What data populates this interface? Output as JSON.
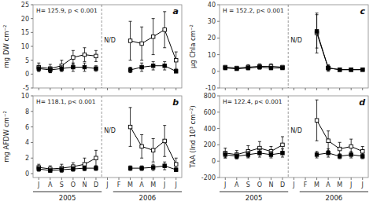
{
  "chart_data": [
    {
      "type": "line",
      "title": "a",
      "subtitle": "H= 125.9, p < 0.001",
      "ylabel": "mg DW cm⁻²",
      "categories": [
        "J",
        "A",
        "S",
        "O",
        "N",
        "D",
        "J",
        "F",
        "M",
        "A",
        "M",
        "J",
        "J"
      ],
      "series": [
        {
          "marker": "square-open",
          "color": "#000000",
          "values": [
            2.5,
            2.0,
            3.0,
            6.0,
            7.0,
            6.5,
            null,
            null,
            12.0,
            11.0,
            13.5,
            16.0,
            5.0
          ],
          "errors": [
            1.5,
            1.5,
            2.0,
            2.5,
            2.5,
            2.0,
            null,
            null,
            7.0,
            6.0,
            6.5,
            6.5,
            3.0
          ]
        },
        {
          "marker": "square",
          "color": "#000000",
          "values": [
            2.0,
            1.5,
            2.0,
            2.5,
            2.5,
            2.0,
            null,
            null,
            1.5,
            2.5,
            3.0,
            3.0,
            1.0
          ],
          "errors": [
            1.0,
            1.0,
            1.0,
            1.5,
            1.5,
            1.0,
            null,
            null,
            1.0,
            1.5,
            1.5,
            1.5,
            0.5
          ]
        }
      ],
      "ylim": [
        -5,
        25
      ],
      "yticks": [
        -5,
        0,
        5,
        10,
        15,
        20,
        25
      ],
      "tick_labels": "y",
      "annotations": [
        "N/D"
      ]
    },
    {
      "type": "line",
      "title": "c",
      "subtitle": "H = 152.2, p< 0.001",
      "ylabel": "μg Chla cm⁻²",
      "categories": [
        "J",
        "A",
        "S",
        "O",
        "N",
        "D",
        "J",
        "F",
        "M",
        "A",
        "M",
        "J",
        "J"
      ],
      "series": [
        {
          "marker": "square-open",
          "color": "#000000",
          "values": [
            2.5,
            2.0,
            2.5,
            3.0,
            3.0,
            2.5,
            null,
            null,
            23.0,
            2.0,
            1.0,
            1.0,
            1.0
          ],
          "errors": [
            1.0,
            1.0,
            1.5,
            1.5,
            1.5,
            1.0,
            null,
            null,
            12.0,
            2.0,
            1.0,
            1.0,
            0.5
          ]
        },
        {
          "marker": "square",
          "color": "#000000",
          "values": [
            2.0,
            1.5,
            2.0,
            2.5,
            2.0,
            2.0,
            null,
            null,
            24.0,
            2.0,
            1.0,
            1.0,
            1.0
          ],
          "errors": [
            1.0,
            0.8,
            1.0,
            1.2,
            1.0,
            0.8,
            null,
            null,
            10.0,
            1.5,
            0.8,
            0.8,
            0.5
          ]
        }
      ],
      "ylim": [
        -10,
        40
      ],
      "yticks": [
        -10,
        0,
        10,
        20,
        30,
        40
      ],
      "tick_labels": "y",
      "annotations": [
        "N/D"
      ]
    },
    {
      "type": "line",
      "title": "b",
      "subtitle": "H= 118.1, p< 0.001",
      "ylabel": "mg AFDW cm⁻²",
      "categories": [
        "J",
        "A",
        "S",
        "O",
        "N",
        "D",
        "J",
        "F",
        "M",
        "A",
        "M",
        "J",
        "J"
      ],
      "series": [
        {
          "marker": "square-open",
          "color": "#000000",
          "values": [
            0.8,
            0.6,
            0.7,
            0.9,
            1.2,
            2.0,
            null,
            null,
            6.0,
            3.5,
            3.0,
            4.2,
            1.2
          ],
          "errors": [
            0.4,
            0.4,
            0.5,
            0.5,
            0.8,
            1.0,
            null,
            null,
            2.5,
            1.5,
            1.5,
            2.0,
            0.8
          ]
        },
        {
          "marker": "square",
          "color": "#000000",
          "values": [
            0.6,
            0.4,
            0.5,
            0.6,
            0.7,
            0.7,
            null,
            null,
            0.7,
            0.7,
            0.8,
            1.0,
            0.5
          ],
          "errors": [
            0.3,
            0.2,
            0.3,
            0.3,
            0.3,
            0.3,
            null,
            null,
            0.3,
            0.3,
            0.4,
            0.5,
            0.2
          ]
        }
      ],
      "ylim": [
        -0.5,
        10
      ],
      "yticks": [
        0,
        2,
        4,
        6,
        8,
        10
      ],
      "annotations": [
        "N/D",
        "2005",
        "2006"
      ]
    },
    {
      "type": "line",
      "title": "d",
      "subtitle": "H= 122.4, p< 0.001",
      "ylabel": "TAA (Ind 10³ cm⁻²)",
      "categories": [
        "J",
        "A",
        "S",
        "O",
        "N",
        "D",
        "J",
        "F",
        "M",
        "A",
        "M",
        "J",
        "J"
      ],
      "series": [
        {
          "marker": "square-open",
          "color": "#000000",
          "values": [
            100,
            80,
            120,
            160,
            120,
            200,
            null,
            null,
            500,
            250,
            150,
            180,
            120
          ],
          "errors": [
            60,
            50,
            70,
            80,
            60,
            100,
            null,
            null,
            250,
            120,
            80,
            90,
            60
          ]
        },
        {
          "marker": "square",
          "color": "#000000",
          "values": [
            80,
            60,
            80,
            100,
            80,
            100,
            null,
            null,
            80,
            100,
            60,
            80,
            60
          ],
          "errors": [
            40,
            30,
            40,
            50,
            40,
            50,
            null,
            null,
            40,
            50,
            30,
            40,
            30
          ]
        }
      ],
      "ylim": [
        -200,
        800
      ],
      "yticks": [
        -200,
        0,
        200,
        400,
        600,
        800
      ],
      "annotations": [
        "N/D",
        "2005",
        "2006"
      ]
    }
  ]
}
